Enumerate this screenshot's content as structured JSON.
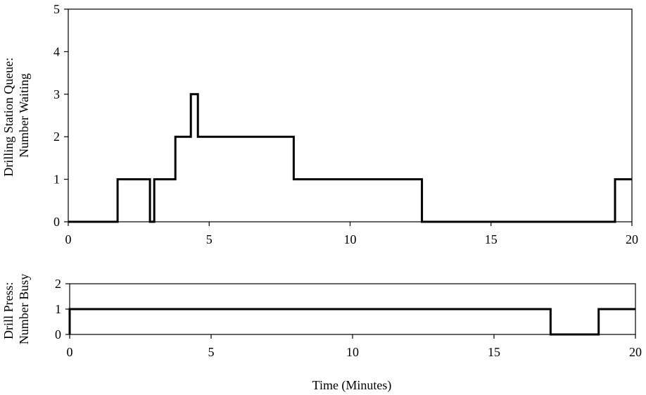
{
  "chart_data": [
    {
      "type": "line",
      "step": true,
      "title": "",
      "xlabel": "",
      "ylabel": [
        "Drilling Station Queue:",
        "Number Waiting"
      ],
      "xlim": [
        0,
        20
      ],
      "ylim": [
        0,
        5
      ],
      "x_ticks": [
        0,
        5,
        10,
        15,
        20
      ],
      "y_ticks": [
        0,
        1,
        2,
        3,
        4,
        5
      ],
      "grid": false,
      "series": [
        {
          "x": [
            0,
            1.75,
            1.75,
            2.9,
            2.9,
            3.05,
            3.05,
            3.8,
            3.8,
            4.35,
            4.35,
            4.6,
            4.6,
            8.0,
            8.0,
            12.55,
            12.55,
            19.4,
            19.4,
            20
          ],
          "y": [
            0,
            0,
            1,
            1,
            0,
            0,
            1,
            1,
            2,
            2,
            3,
            3,
            2,
            2,
            1,
            1,
            0,
            0,
            1,
            1
          ]
        }
      ]
    },
    {
      "type": "line",
      "step": true,
      "title": "",
      "xlabel": "Time (Minutes)",
      "ylabel": [
        "Drill Press:",
        "Number Busy"
      ],
      "xlim": [
        0,
        20
      ],
      "ylim": [
        0,
        2
      ],
      "x_ticks": [
        0,
        5,
        10,
        15,
        20
      ],
      "y_ticks": [
        0,
        1,
        2
      ],
      "grid": false,
      "series": [
        {
          "x": [
            0,
            0,
            17.0,
            17.0,
            18.7,
            18.7,
            20
          ],
          "y": [
            0,
            1,
            1,
            0,
            0,
            1,
            1
          ]
        }
      ]
    }
  ]
}
